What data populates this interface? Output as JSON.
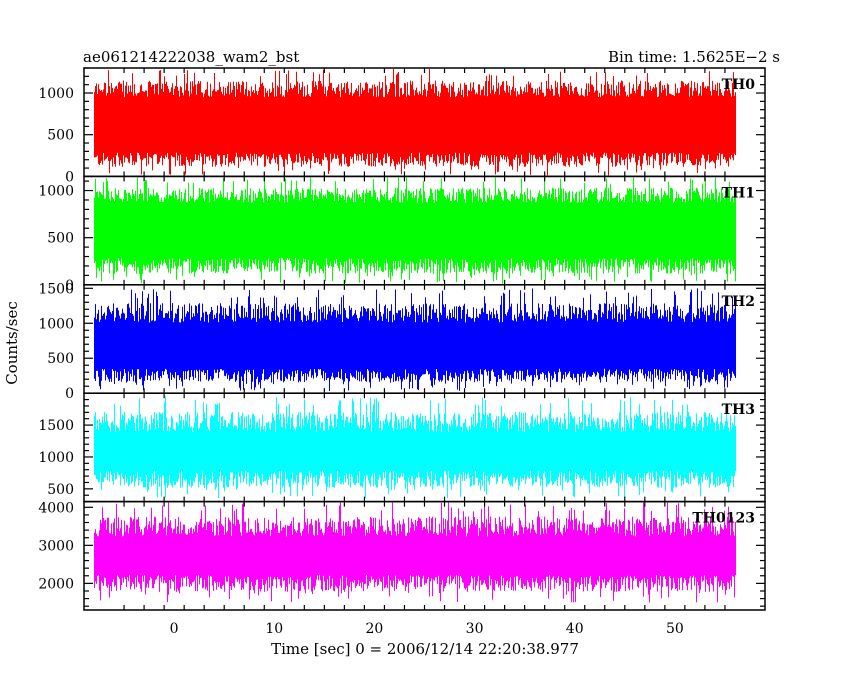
{
  "header": {
    "title": "ae061214222038_wam2_bst",
    "bin_time": "Bin time: 1.5625E−2 s"
  },
  "chart_data": {
    "type": "line",
    "xlabel": "Time [sec] 0 = 2006/12/14 22:20:38.977",
    "ylabel": "Counts/sec",
    "xlim": [
      -9,
      59
    ],
    "xticks": [
      0,
      10,
      20,
      30,
      40,
      50
    ],
    "x_range": [
      -8,
      56
    ],
    "bin_time_sec": 0.015625,
    "grid": false,
    "panels": [
      {
        "name": "TH0",
        "color": "#ff0000",
        "ylim": [
          0,
          1300
        ],
        "yticks": [
          0,
          500,
          1000
        ],
        "typical_range": [
          200,
          1050
        ],
        "extreme_range": [
          10,
          1300
        ]
      },
      {
        "name": "TH1",
        "color": "#00ff00",
        "ylim": [
          0,
          1150
        ],
        "yticks": [
          0,
          500,
          1000
        ],
        "typical_range": [
          200,
          950
        ],
        "extreme_range": [
          10,
          1150
        ]
      },
      {
        "name": "TH2",
        "color": "#0000ff",
        "ylim": [
          0,
          1550
        ],
        "yticks": [
          0,
          500,
          1000,
          1500
        ],
        "typical_range": [
          250,
          1150
        ],
        "extreme_range": [
          30,
          1500
        ]
      },
      {
        "name": "TH3",
        "color": "#00ffff",
        "ylim": [
          300,
          2000
        ],
        "yticks": [
          500,
          1000,
          1500
        ],
        "typical_range": [
          650,
          1550
        ],
        "extreme_range": [
          350,
          1950
        ]
      },
      {
        "name": "TH0123",
        "color": "#ff00ff",
        "ylim": [
          1300,
          4150
        ],
        "yticks": [
          2000,
          3000,
          4000
        ],
        "typical_range": [
          2000,
          3500
        ],
        "extreme_range": [
          1500,
          4150
        ]
      }
    ]
  }
}
